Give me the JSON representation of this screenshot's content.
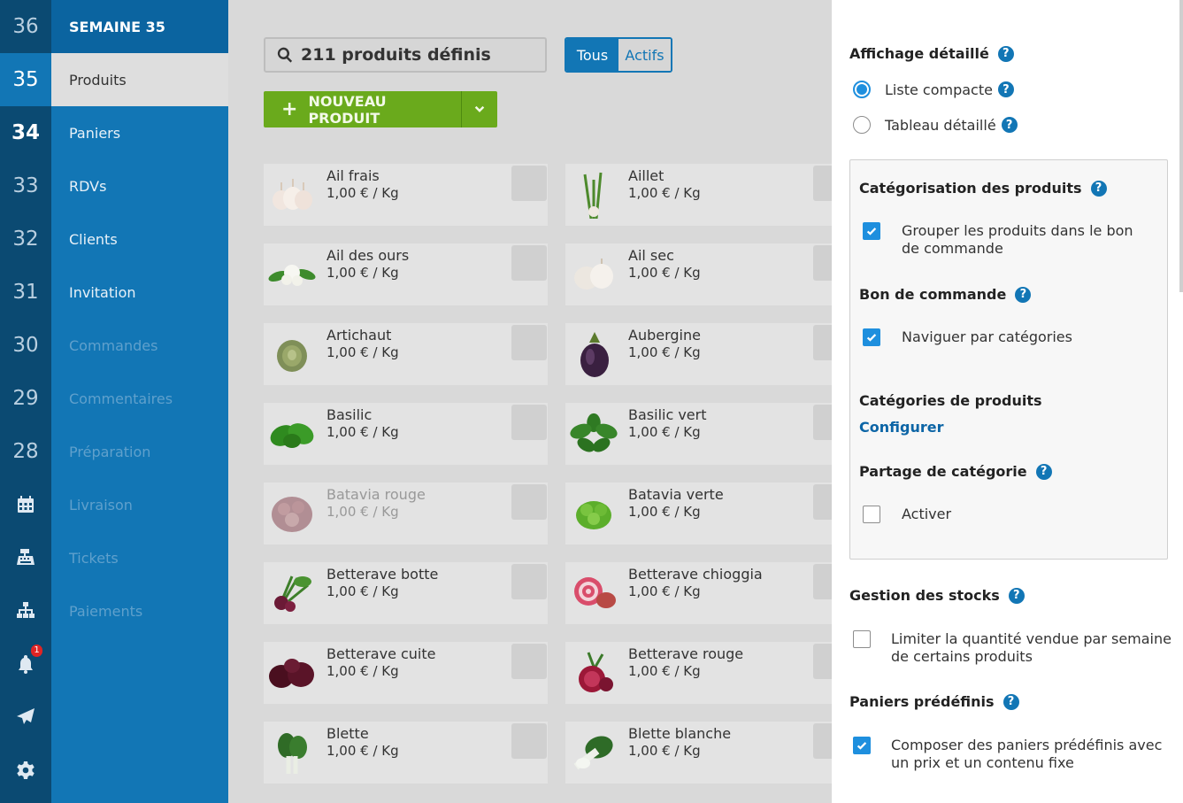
{
  "week_rail": {
    "weeks": [
      "36",
      "35",
      "34",
      "33",
      "32",
      "31",
      "30",
      "29",
      "28"
    ],
    "icons": [
      "calendar-icon",
      "cash-register-icon",
      "sitemap-icon",
      "bell-icon",
      "paper-plane-icon",
      "gear-icon"
    ],
    "notification_count": "1"
  },
  "nav": {
    "header": "SEMAINE 35",
    "items": [
      "Produits",
      "Paniers",
      "RDVs",
      "Clients",
      "Invitation",
      "Commandes",
      "Commentaires",
      "Préparation",
      "Livraison",
      "Tickets",
      "Paiements"
    ]
  },
  "main": {
    "search_text": "211 produits définis",
    "filter": {
      "all": "Tous",
      "active": "Actifs"
    },
    "new_product_label": "NOUVEAU PRODUIT",
    "products": [
      {
        "name": "Ail frais",
        "price": "1,00 € / Kg"
      },
      {
        "name": "Aillet",
        "price": "1,00 € / Kg"
      },
      {
        "name": "Ail des ours",
        "price": "1,00 € / Kg"
      },
      {
        "name": "Ail sec",
        "price": "1,00 € / Kg"
      },
      {
        "name": "Artichaut",
        "price": "1,00 € / Kg"
      },
      {
        "name": "Aubergine",
        "price": "1,00 € / Kg"
      },
      {
        "name": "Basilic",
        "price": "1,00 € / Kg"
      },
      {
        "name": "Basilic vert",
        "price": "1,00 € / Kg"
      },
      {
        "name": "Batavia rouge",
        "price": "1,00 € / Kg"
      },
      {
        "name": "Batavia verte",
        "price": "1,00 € / Kg"
      },
      {
        "name": "Betterave botte",
        "price": "1,00 € / Kg"
      },
      {
        "name": "Betterave chioggia",
        "price": "1,00 € / Kg"
      },
      {
        "name": "Betterave cuite",
        "price": "1,00 € / Kg"
      },
      {
        "name": "Betterave rouge",
        "price": "1,00 € / Kg"
      },
      {
        "name": "Blette",
        "price": "1,00 € / Kg"
      },
      {
        "name": "Blette blanche",
        "price": "1,00 € / Kg"
      }
    ]
  },
  "panel": {
    "display_title": "Affichage détaillé",
    "compact_list": "Liste compacte",
    "detailed_table": "Tableau détaillé",
    "categorization_title": "Catégorisation des produits",
    "group_products": "Grouper les produits dans le bon de commande",
    "order_form_title": "Bon de commande",
    "browse_categories": "Naviguer par catégories",
    "product_categories_title": "Catégories de produits",
    "configure_link": "Configurer",
    "category_sharing_title": "Partage de catégorie",
    "enable": "Activer",
    "stock_title": "Gestion des stocks",
    "limit_quantity": "Limiter la quantité vendue par semaine de certains produits",
    "baskets_title": "Paniers prédéfinis",
    "compose_baskets": "Composer des paniers prédéfinis avec un prix et un contenu fixe",
    "help_symbol": "?"
  },
  "colors": {
    "primary": "#1276b5",
    "rail": "#0b4a72",
    "green": "#6aaa1c",
    "checkbox": "#1e8fde"
  }
}
